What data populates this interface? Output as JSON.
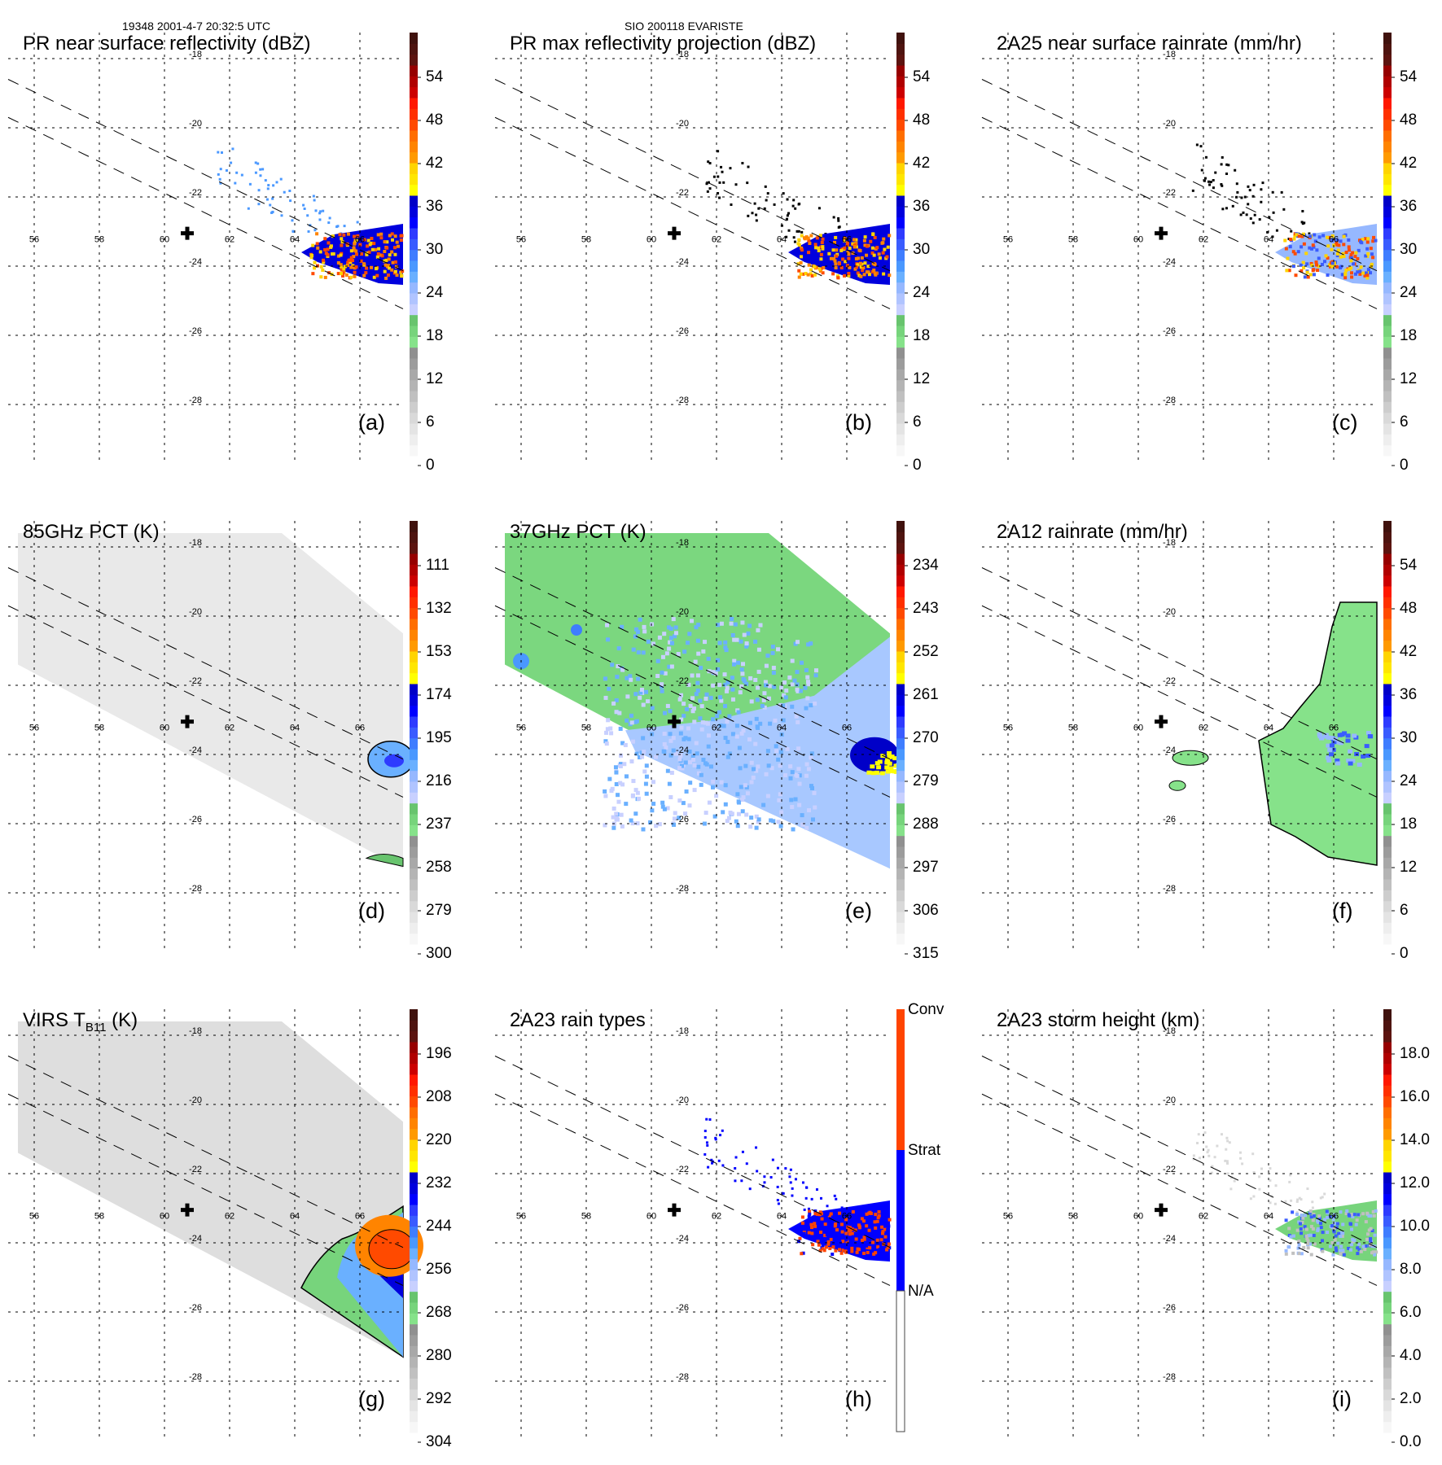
{
  "header": {
    "left": "19348 2001-4-7 20:32:5 UTC",
    "center": "SIO 200118 EVARISTE"
  },
  "map": {
    "lon_ticks": [
      "56",
      "58",
      "60",
      "62",
      "64",
      "66"
    ],
    "lat_ticks": [
      "-18",
      "-20",
      "-22",
      "-24",
      "-26",
      "-28"
    ],
    "center_marker": "plus-marker",
    "swath_lines": "dashed"
  },
  "palette": {
    "ramp": [
      "#f7f7f7",
      "#eeeeee",
      "#e4e4e4",
      "#d9d9d9",
      "#cdcdcd",
      "#c0c0c0",
      "#b4b4b4",
      "#a8a8a8",
      "#9c9c9c",
      "#909090",
      "#86e28a",
      "#77d47c",
      "#68c46e",
      "#c8d0ff",
      "#b0c4ff",
      "#96b8ff",
      "#6ab0ff",
      "#4a98ff",
      "#3f7dff",
      "#3a5cff",
      "#2e3bff",
      "#0000ff",
      "#0000dd",
      "#0000c8",
      "#ffff00",
      "#ffe600",
      "#ffd400",
      "#ff9a00",
      "#ff8400",
      "#ff6e00",
      "#ff4a00",
      "#ff3000",
      "#ff1800",
      "#cc0000",
      "#b00000",
      "#960000",
      "#5c1410",
      "#4e1410",
      "#40120e"
    ],
    "rain_type": {
      "conv": "#ff4400",
      "strat": "#0000ff",
      "na": "#ffffff"
    }
  },
  "panels": [
    {
      "id": "a",
      "title": "PR near surface reflectivity (dBZ)",
      "label": "(a)",
      "colorbar": {
        "type": "ramp",
        "ticks": [
          "54",
          "48",
          "42",
          "36",
          "30",
          "24",
          "18",
          "12",
          "6",
          "0"
        ]
      },
      "field": "pr_sfc"
    },
    {
      "id": "b",
      "title": "PR max reflectivity projection (dBZ)",
      "label": "(b)",
      "colorbar": {
        "type": "ramp",
        "ticks": [
          "54",
          "48",
          "42",
          "36",
          "30",
          "24",
          "18",
          "12",
          "6",
          "0"
        ]
      },
      "field": "pr_max"
    },
    {
      "id": "c",
      "title": "2A25 near surface rainrate (mm/hr)",
      "label": "(c)",
      "colorbar": {
        "type": "ramp",
        "ticks": [
          "54",
          "48",
          "42",
          "36",
          "30",
          "24",
          "18",
          "12",
          "6",
          "0"
        ]
      },
      "field": "rain25"
    },
    {
      "id": "d",
      "title": "85GHz PCT (K)",
      "label": "(d)",
      "colorbar": {
        "type": "ramp",
        "ticks": [
          "111",
          "132",
          "153",
          "174",
          "195",
          "216",
          "237",
          "258",
          "279",
          "300"
        ]
      },
      "field": "pct85"
    },
    {
      "id": "e",
      "title": "37GHz PCT (K)",
      "label": "(e)",
      "colorbar": {
        "type": "ramp",
        "ticks": [
          "234",
          "243",
          "252",
          "261",
          "270",
          "279",
          "288",
          "297",
          "306",
          "315"
        ]
      },
      "field": "pct37"
    },
    {
      "id": "f",
      "title": "2A12 rainrate (mm/hr)",
      "label": "(f)",
      "colorbar": {
        "type": "ramp",
        "ticks": [
          "54",
          "48",
          "42",
          "36",
          "30",
          "24",
          "18",
          "12",
          "6",
          "0"
        ]
      },
      "field": "rain12"
    },
    {
      "id": "g",
      "title_main": "VIRS T",
      "title_sub": "B11",
      "title_tail": " (K)",
      "label": "(g)",
      "colorbar": {
        "type": "ramp",
        "ticks": [
          "196",
          "208",
          "220",
          "232",
          "244",
          "256",
          "268",
          "280",
          "292",
          "304"
        ]
      },
      "field": "virs"
    },
    {
      "id": "h",
      "title": "2A23 rain types",
      "label": "(h)",
      "colorbar": {
        "type": "categorical",
        "ticks": [
          "Conv",
          "Strat",
          "N/A"
        ]
      },
      "field": "raintype"
    },
    {
      "id": "i",
      "title": "2A23 storm height (km)",
      "label": "(i)",
      "colorbar": {
        "type": "ramp",
        "ticks": [
          "18.0",
          "16.0",
          "14.0",
          "12.0",
          "10.0",
          "8.0",
          "6.0",
          "4.0",
          "2.0",
          "0.0"
        ]
      },
      "field": "height"
    }
  ]
}
